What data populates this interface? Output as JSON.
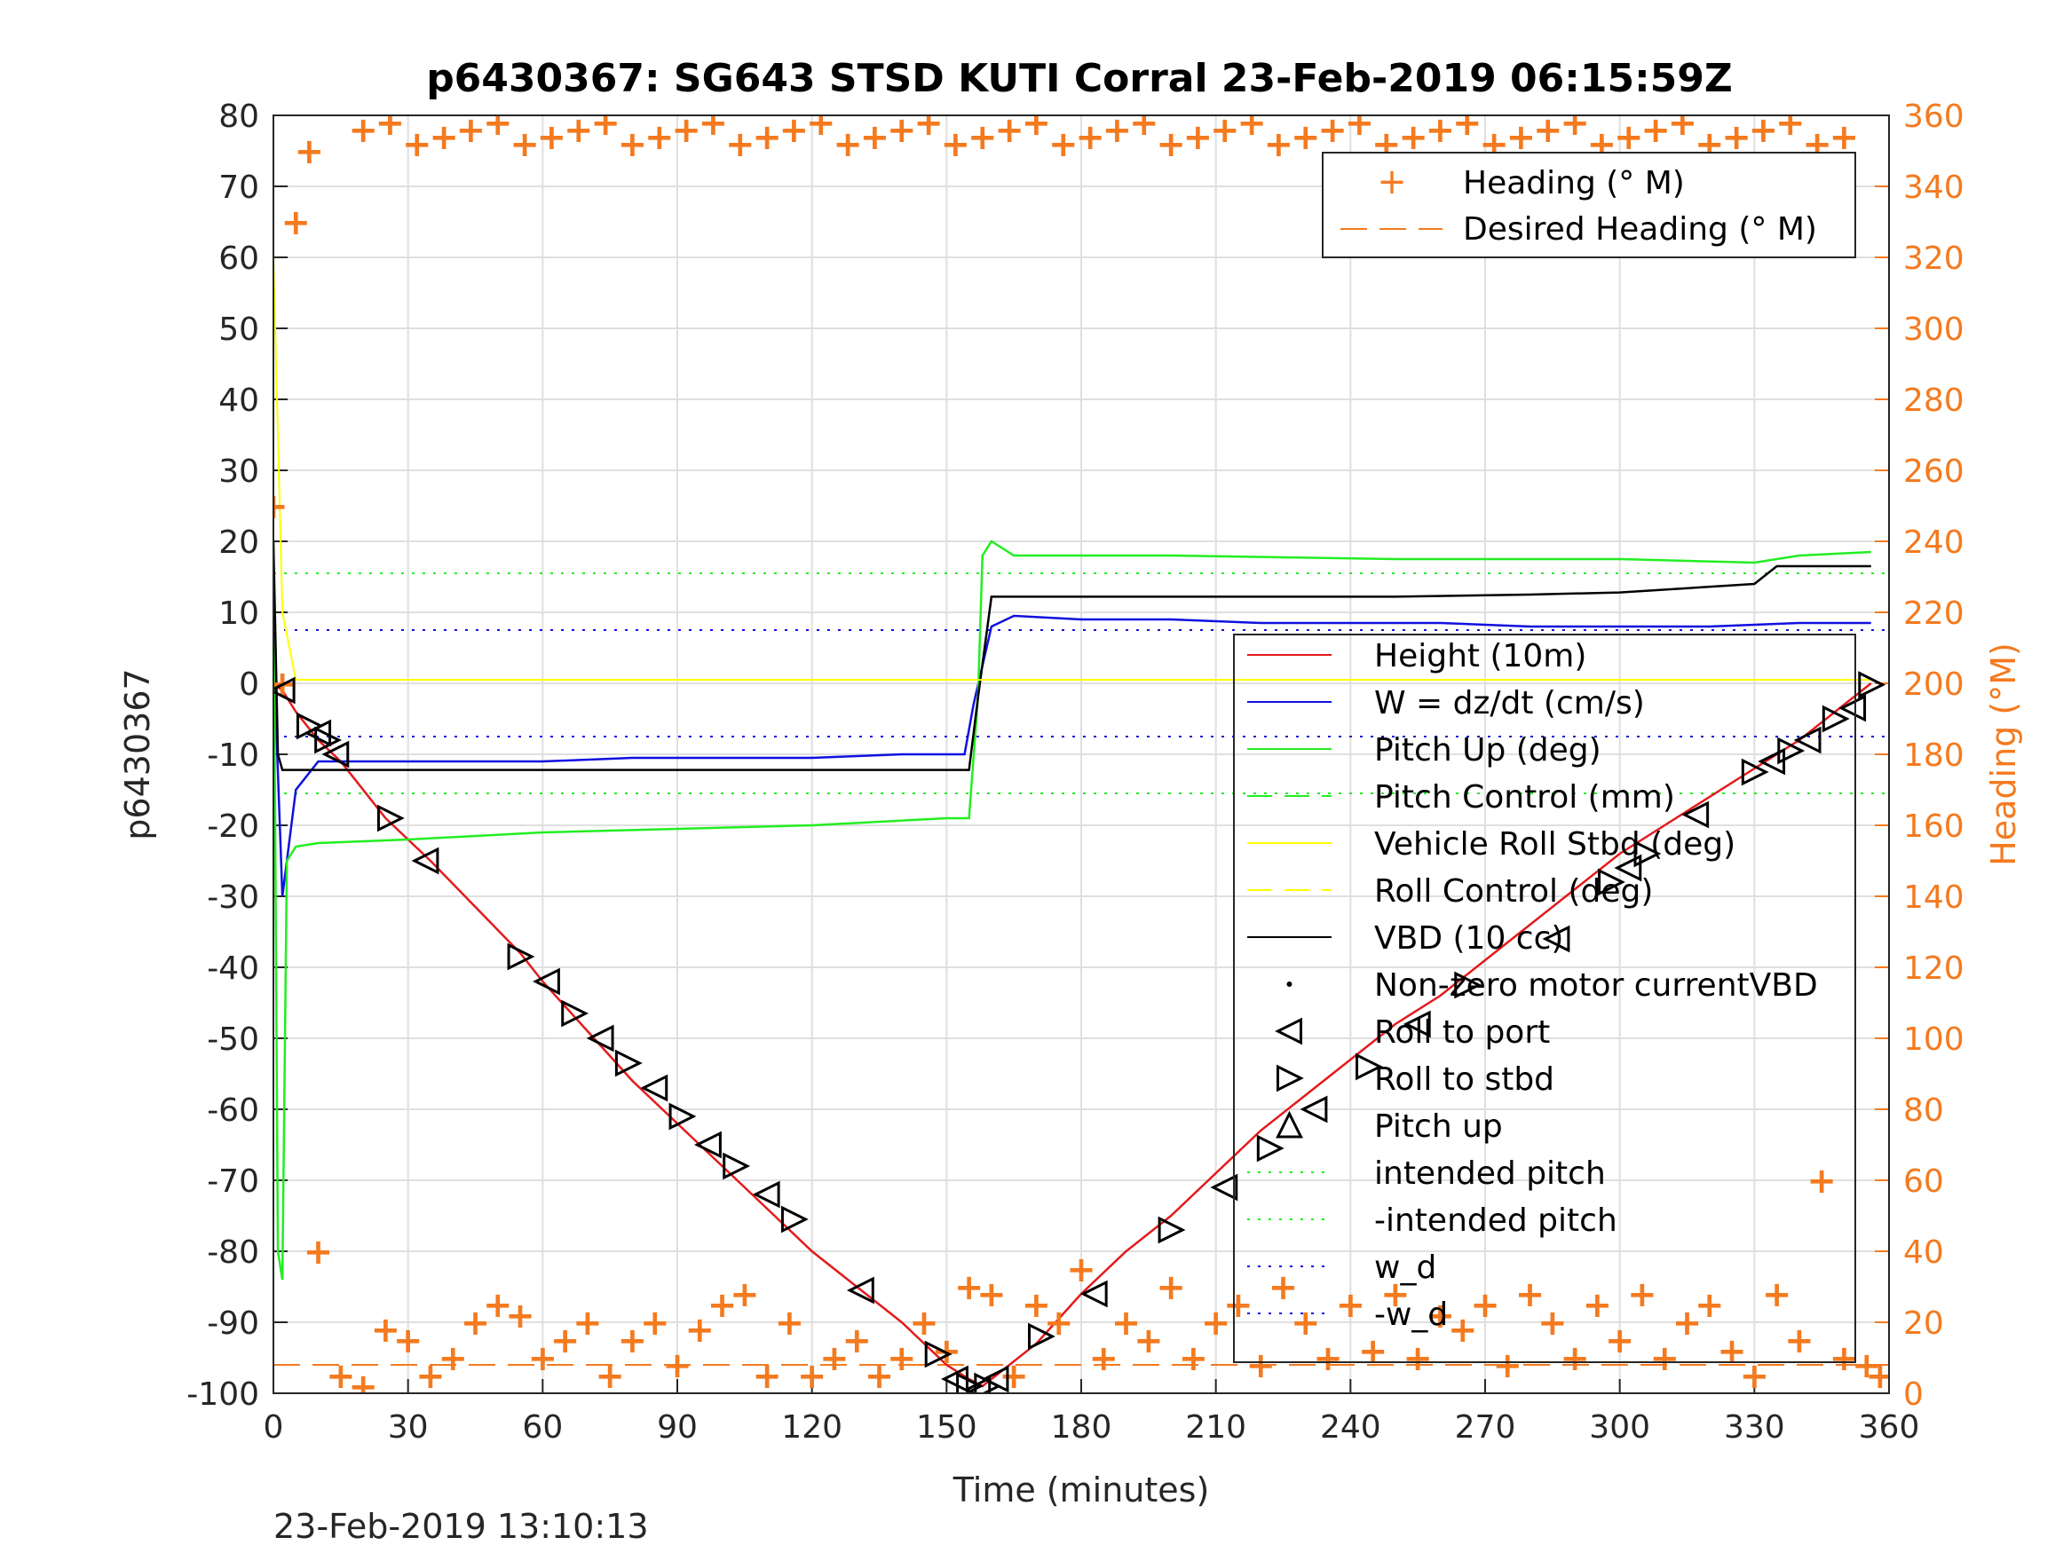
{
  "chart_data": {
    "type": "line",
    "title": "p6430367: SG643 STSD KUTI Corral 23-Feb-2019 06:15:59Z",
    "xlabel": "Time (minutes)",
    "ylabel": "p6430367",
    "ylabel_right": "Heading (°M)",
    "footer_timestamp": "23-Feb-2019 13:10:13",
    "xlim": [
      0,
      360
    ],
    "ylim": [
      -100,
      80
    ],
    "ylim_right": [
      0,
      360
    ],
    "xticks": [
      0,
      30,
      60,
      90,
      120,
      150,
      180,
      210,
      240,
      270,
      300,
      330,
      360
    ],
    "yticks": [
      -100,
      -90,
      -80,
      -70,
      -60,
      -50,
      -40,
      -30,
      -20,
      -10,
      0,
      10,
      20,
      30,
      40,
      50,
      60,
      70,
      80
    ],
    "yticks_right": [
      0,
      20,
      40,
      60,
      80,
      100,
      120,
      140,
      160,
      180,
      200,
      220,
      240,
      260,
      280,
      300,
      320,
      340,
      360
    ],
    "grid": true,
    "colors": {
      "height": "#e41a1c",
      "w": "#1010e0",
      "pitch": "#22ee22",
      "roll": "#ffff00",
      "vbd": "#000000",
      "heading": "#f47a1f"
    },
    "legend_heading": [
      {
        "label": "Heading (° M)",
        "marker": "plus"
      },
      {
        "label": "Desired Heading (° M)",
        "marker": "dash"
      }
    ],
    "legend_main": [
      {
        "label": "Height (10m)",
        "marker": "line-red"
      },
      {
        "label": "W = dz/dt (cm/s)",
        "marker": "line-blue"
      },
      {
        "label": "Pitch Up (deg)",
        "marker": "line-green"
      },
      {
        "label": "Pitch Control (mm)",
        "marker": "dash-green"
      },
      {
        "label": "Vehicle Roll Stbd (deg)",
        "marker": "line-yellow"
      },
      {
        "label": "Roll Control (deg)",
        "marker": "dash-yellow"
      },
      {
        "label": "VBD (10 cc)",
        "marker": "line-black"
      },
      {
        "label": "Non-zero motor currentVBD",
        "marker": "dot"
      },
      {
        "label": "Roll to port",
        "marker": "tri-left"
      },
      {
        "label": "Roll to stbd",
        "marker": "tri-right"
      },
      {
        "label": "Pitch up",
        "marker": "tri-up"
      },
      {
        "label": "intended pitch",
        "marker": "dot-green"
      },
      {
        "label": "-intended pitch",
        "marker": "dot-green"
      },
      {
        "label": "w_d",
        "marker": "dot-blue"
      },
      {
        "label": "-w_d",
        "marker": "dot-blue"
      }
    ],
    "reference_lines": {
      "intended_pitch": 15.5,
      "neg_intended_pitch": -15.5,
      "w_d": 7.5,
      "neg_w_d": -7.5,
      "desired_heading": 8
    },
    "series": [
      {
        "name": "Height (10m)",
        "x": [
          0,
          2,
          5,
          10,
          15,
          25,
          35,
          55,
          60,
          70,
          80,
          90,
          100,
          110,
          120,
          130,
          140,
          150,
          155,
          158,
          162,
          170,
          180,
          190,
          200,
          210,
          220,
          230,
          240,
          250,
          260,
          270,
          280,
          290,
          300,
          310,
          320,
          330,
          340,
          350,
          356
        ],
        "y": [
          0,
          -1,
          -4,
          -8,
          -11,
          -19,
          -25,
          -38,
          -42,
          -49,
          -56,
          -62,
          -68,
          -74,
          -80,
          -85,
          -90,
          -96,
          -98,
          -99,
          -97,
          -93,
          -86,
          -80,
          -75,
          -69,
          -63,
          -58,
          -53,
          -48,
          -44,
          -39,
          -34,
          -29,
          -24,
          -20,
          -16,
          -12,
          -8,
          -3,
          0
        ]
      },
      {
        "name": "W = dz/dt (cm/s)",
        "x": [
          0,
          2,
          5,
          10,
          20,
          40,
          60,
          80,
          100,
          120,
          140,
          154,
          156,
          160,
          165,
          180,
          200,
          220,
          240,
          260,
          280,
          300,
          320,
          340,
          356
        ],
        "y": [
          5,
          -30,
          -15,
          -11,
          -11,
          -11,
          -11,
          -10.5,
          -10.5,
          -10.5,
          -10,
          -10,
          -3,
          8,
          9.5,
          9,
          9,
          8.5,
          8.5,
          8.5,
          8,
          8,
          8,
          8.5,
          8.5
        ]
      },
      {
        "name": "Pitch Up (deg)",
        "x": [
          0,
          1,
          2,
          3,
          5,
          10,
          30,
          60,
          90,
          120,
          150,
          155,
          157,
          158,
          160,
          165,
          200,
          250,
          300,
          330,
          340,
          356
        ],
        "y": [
          20,
          -80,
          -84,
          -25,
          -23,
          -22.5,
          -22,
          -21,
          -20.5,
          -20,
          -19,
          -19,
          -2,
          18,
          20,
          18,
          18,
          17.5,
          17.5,
          17,
          18,
          18.5
        ]
      },
      {
        "name": "VBD (10 cc)",
        "x": [
          0,
          1,
          2,
          155,
          157,
          160,
          200,
          250,
          280,
          300,
          330,
          335,
          356
        ],
        "y": [
          20,
          -10,
          -12.2,
          -12.2,
          -2,
          12.2,
          12.2,
          12.2,
          12.5,
          12.8,
          14,
          16.5,
          16.5
        ]
      },
      {
        "name": "Vehicle Roll Stbd (deg)",
        "x": [
          0,
          2,
          5,
          10,
          30,
          60,
          90,
          120,
          150,
          160,
          200,
          250,
          300,
          340,
          356
        ],
        "y": [
          60,
          10,
          0.5,
          0.5,
          0.5,
          0.5,
          0.5,
          0.5,
          0.5,
          0.5,
          0.5,
          0.5,
          0.5,
          0.5,
          0.5
        ]
      },
      {
        "name": "Heading (° M)",
        "x": [
          0,
          2,
          5,
          8,
          10,
          15,
          20,
          25,
          30,
          35,
          40,
          45,
          50,
          55,
          60,
          65,
          70,
          75,
          80,
          85,
          90,
          95,
          100,
          105,
          110,
          115,
          120,
          125,
          130,
          135,
          140,
          145,
          150,
          155,
          160,
          165,
          170,
          175,
          180,
          185,
          190,
          195,
          200,
          205,
          210,
          215,
          220,
          225,
          230,
          235,
          240,
          245,
          250,
          255,
          260,
          265,
          270,
          275,
          280,
          285,
          290,
          295,
          300,
          305,
          310,
          315,
          320,
          325,
          330,
          335,
          340,
          345,
          350,
          355,
          358
        ],
        "y": [
          250,
          200,
          330,
          350,
          40,
          5,
          2,
          18,
          15,
          5,
          10,
          20,
          25,
          22,
          10,
          15,
          20,
          5,
          15,
          20,
          8,
          18,
          25,
          28,
          5,
          20,
          5,
          10,
          15,
          5,
          10,
          20,
          12,
          30,
          28,
          5,
          25,
          20,
          35,
          10,
          20,
          15,
          30,
          10,
          20,
          25,
          8,
          30,
          20,
          10,
          25,
          12,
          28,
          10,
          22,
          18,
          25,
          8,
          28,
          20,
          10,
          25,
          15,
          28,
          10,
          20,
          25,
          12,
          5,
          28,
          15,
          60,
          10,
          8,
          5
        ]
      }
    ],
    "top_heading_band": {
      "y_range": [
        345,
        360
      ],
      "note_values": [
        352,
        358,
        355,
        360
      ]
    },
    "markers": {
      "roll_points_x": [
        2,
        8,
        10,
        12,
        14,
        26,
        34,
        55,
        61,
        67,
        73,
        79,
        85,
        91,
        97,
        103,
        110,
        116,
        131,
        148,
        152,
        155,
        157,
        159,
        161,
        171,
        183,
        200,
        212,
        222,
        232,
        244,
        255,
        266,
        286,
        298,
        302,
        306,
        317,
        330,
        334,
        338,
        342,
        348,
        352,
        356
      ],
      "roll_points_y": [
        -1,
        -6,
        -7,
        -8,
        -10,
        -19,
        -25,
        -38.5,
        -42,
        -46.5,
        -50,
        -53.5,
        -57,
        -61,
        -65,
        -68,
        -72,
        -75.5,
        -85.5,
        -94.5,
        -98,
        -99,
        -99.5,
        -99,
        -98,
        -92,
        -86,
        -77,
        -71,
        -65.5,
        -60,
        -54,
        -48,
        -42.5,
        -36,
        -28,
        -26,
        -24,
        -18.5,
        -12.5,
        -11,
        -9.5,
        -8,
        -5,
        -3.5,
        -0.2
      ]
    }
  }
}
